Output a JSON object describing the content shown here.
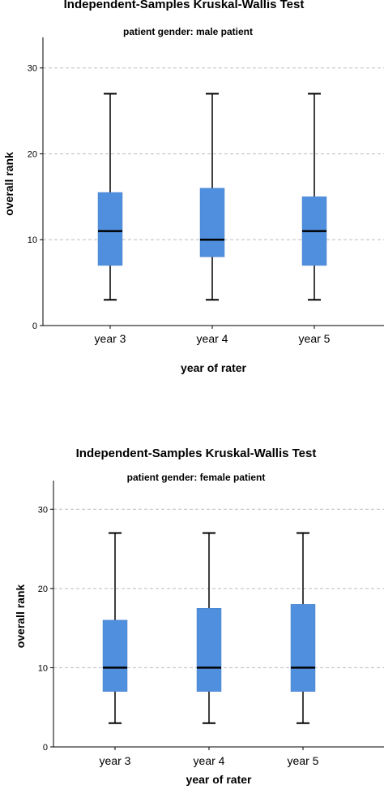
{
  "chart_data": [
    {
      "type": "box",
      "title": "Independent-Samples Kruskal-Wallis Test",
      "subtitle": "patient gender: male patient",
      "xlabel": "year of rater",
      "ylabel": "overall rank",
      "ylim": [
        0,
        33
      ],
      "yticks": [
        0,
        10,
        20,
        30
      ],
      "grid": true,
      "categories": [
        "year 3",
        "year 4",
        "year 5"
      ],
      "boxes": [
        {
          "min": 3,
          "q1": 7,
          "median": 11,
          "q3": 15.5,
          "max": 27
        },
        {
          "min": 3,
          "q1": 8,
          "median": 10,
          "q3": 16,
          "max": 27
        },
        {
          "min": 3,
          "q1": 7,
          "median": 11,
          "q3": 15,
          "max": 27
        }
      ],
      "box_color": "#4f8fde"
    },
    {
      "type": "box",
      "title": "Independent-Samples Kruskal-Wallis Test",
      "subtitle": "patient gender: female patient",
      "xlabel": "year of rater",
      "ylabel": "overall rank",
      "ylim": [
        0,
        33
      ],
      "yticks": [
        0,
        10,
        20,
        30
      ],
      "grid": true,
      "categories": [
        "year 3",
        "year 4",
        "year 5"
      ],
      "boxes": [
        {
          "min": 3,
          "q1": 7,
          "median": 10,
          "q3": 16,
          "max": 27
        },
        {
          "min": 3,
          "q1": 7,
          "median": 10,
          "q3": 17.5,
          "max": 27
        },
        {
          "min": 3,
          "q1": 7,
          "median": 10,
          "q3": 18,
          "max": 27
        }
      ],
      "box_color": "#4f8fde"
    }
  ]
}
